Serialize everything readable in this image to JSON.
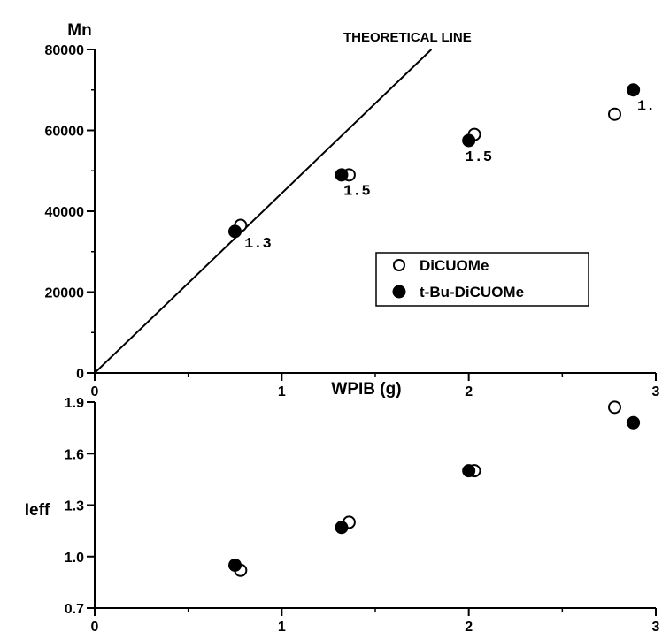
{
  "chart_data": [
    {
      "type": "scatter",
      "ylabel": "Mn",
      "xlabel": "WPIB (g)",
      "xlim": [
        0,
        3
      ],
      "ylim": [
        0,
        80000
      ],
      "x_ticks": [
        "0",
        "1",
        "2",
        "3"
      ],
      "y_ticks": [
        "0",
        "20000",
        "40000",
        "60000",
        "80000"
      ],
      "reference_line": {
        "label": "THEORETICAL LINE",
        "points": [
          [
            0,
            0
          ],
          [
            1.8,
            80000
          ]
        ]
      },
      "legend": {
        "placement": "center-right",
        "entries": [
          "DiCUOMe",
          "t-Bu-DiCUOMe"
        ]
      },
      "series": [
        {
          "name": "DiCUOMe",
          "marker": "open-circle",
          "x": [
            0.78,
            1.36,
            2.03,
            2.78
          ],
          "y": [
            36500,
            49000,
            59000,
            64000
          ]
        },
        {
          "name": "t-Bu-DiCUOMe",
          "marker": "filled-circle",
          "x": [
            0.75,
            1.32,
            2.0,
            2.88
          ],
          "y": [
            35000,
            49000,
            57500,
            70000
          ]
        }
      ],
      "annotations": [
        {
          "text": "1.3",
          "x": 0.8,
          "y": 31000
        },
        {
          "text": "1.5",
          "x": 1.33,
          "y": 44000
        },
        {
          "text": "1.5",
          "x": 1.98,
          "y": 52500
        },
        {
          "text": "1.",
          "x": 2.9,
          "y": 65000
        }
      ]
    },
    {
      "type": "scatter",
      "ylabel": "Ieff",
      "xlim": [
        0,
        3
      ],
      "ylim": [
        0.7,
        1.9
      ],
      "x_ticks": [
        "0",
        "1",
        "2",
        "3"
      ],
      "y_ticks": [
        "0.7",
        "1.0",
        "1.3",
        "1.6",
        "1.9"
      ],
      "series": [
        {
          "name": "DiCUOMe",
          "marker": "open-circle",
          "x": [
            0.78,
            1.36,
            2.03,
            2.78
          ],
          "y": [
            0.92,
            1.2,
            1.5,
            1.87
          ]
        },
        {
          "name": "t-Bu-DiCUOMe",
          "marker": "filled-circle",
          "x": [
            0.75,
            1.32,
            2.0,
            2.88
          ],
          "y": [
            0.95,
            1.17,
            1.5,
            1.78
          ]
        }
      ]
    }
  ]
}
